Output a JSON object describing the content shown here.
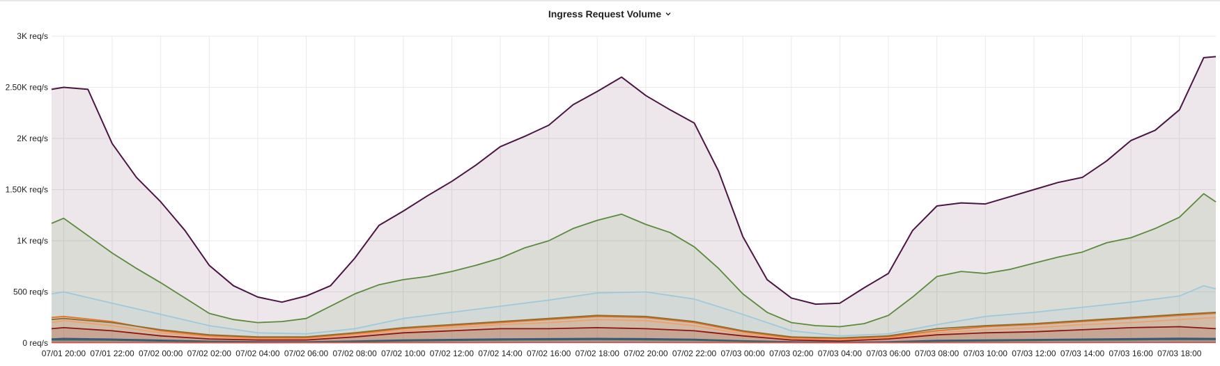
{
  "panel": {
    "title": "Ingress Request Volume"
  },
  "chart_data": {
    "type": "area",
    "title": "Ingress Request Volume",
    "xlabel": "",
    "ylabel": "",
    "ylim": [
      0,
      3000
    ],
    "y_ticks": [
      {
        "value": 0,
        "label": "0 req/s"
      },
      {
        "value": 500,
        "label": "500 req/s"
      },
      {
        "value": 1000,
        "label": "1K req/s"
      },
      {
        "value": 1500,
        "label": "1.50K req/s"
      },
      {
        "value": 2000,
        "label": "2K req/s"
      },
      {
        "value": 2500,
        "label": "2.50K req/s"
      },
      {
        "value": 3000,
        "label": "3K req/s"
      }
    ],
    "x_ticks": [
      "07/01 20:00",
      "07/01 22:00",
      "07/02 00:00",
      "07/02 02:00",
      "07/02 04:00",
      "07/02 06:00",
      "07/02 08:00",
      "07/02 10:00",
      "07/02 12:00",
      "07/02 14:00",
      "07/02 16:00",
      "07/02 18:00",
      "07/02 20:00",
      "07/02 22:00",
      "07/03 00:00",
      "07/03 02:00",
      "07/03 04:00",
      "07/03 06:00",
      "07/03 08:00",
      "07/03 10:00",
      "07/03 12:00",
      "07/03 14:00",
      "07/03 16:00",
      "07/03 18:00"
    ],
    "x_start": "07/01 19:30",
    "x_end": "07/03 19:30",
    "grid": true,
    "legend": "none",
    "series": [
      {
        "color": "#4a1542",
        "x": [
          "07/01 19:30",
          "07/01 20:00",
          "07/01 21:00",
          "07/01 22:00",
          "07/01 23:00",
          "07/02 00:00",
          "07/02 01:00",
          "07/02 02:00",
          "07/02 03:00",
          "07/02 04:00",
          "07/02 05:00",
          "07/02 06:00",
          "07/02 07:00",
          "07/02 08:00",
          "07/02 09:00",
          "07/02 10:00",
          "07/02 11:00",
          "07/02 12:00",
          "07/02 13:00",
          "07/02 14:00",
          "07/02 15:00",
          "07/02 16:00",
          "07/02 17:00",
          "07/02 18:00",
          "07/02 19:00",
          "07/02 20:00",
          "07/02 21:00",
          "07/02 22:00",
          "07/02 23:00",
          "07/03 00:00",
          "07/03 01:00",
          "07/03 02:00",
          "07/03 03:00",
          "07/03 04:00",
          "07/03 05:00",
          "07/03 06:00",
          "07/03 07:00",
          "07/03 08:00",
          "07/03 09:00",
          "07/03 10:00",
          "07/03 11:00",
          "07/03 12:00",
          "07/03 13:00",
          "07/03 14:00",
          "07/03 15:00",
          "07/03 16:00",
          "07/03 17:00",
          "07/03 18:00",
          "07/03 19:00",
          "07/03 19:30"
        ],
        "y": [
          2480,
          2500,
          2480,
          1950,
          1620,
          1380,
          1100,
          760,
          560,
          450,
          400,
          460,
          560,
          830,
          1150,
          1290,
          1440,
          1580,
          1740,
          1920,
          2020,
          2130,
          2330,
          2460,
          2600,
          2420,
          2280,
          2150,
          1680,
          1040,
          620,
          440,
          380,
          390,
          540,
          680,
          1100,
          1340,
          1370,
          1360,
          1430,
          1500,
          1570,
          1620,
          1780,
          1980,
          2080,
          2280,
          2790,
          2800
        ]
      },
      {
        "color": "#5a8a3c",
        "x": [
          "07/01 19:30",
          "07/01 20:00",
          "07/01 21:00",
          "07/01 22:00",
          "07/01 23:00",
          "07/02 00:00",
          "07/02 01:00",
          "07/02 02:00",
          "07/02 03:00",
          "07/02 04:00",
          "07/02 05:00",
          "07/02 06:00",
          "07/02 07:00",
          "07/02 08:00",
          "07/02 09:00",
          "07/02 10:00",
          "07/02 11:00",
          "07/02 12:00",
          "07/02 13:00",
          "07/02 14:00",
          "07/02 15:00",
          "07/02 16:00",
          "07/02 17:00",
          "07/02 18:00",
          "07/02 19:00",
          "07/02 20:00",
          "07/02 21:00",
          "07/02 22:00",
          "07/02 23:00",
          "07/03 00:00",
          "07/03 01:00",
          "07/03 02:00",
          "07/03 03:00",
          "07/03 04:00",
          "07/03 05:00",
          "07/03 06:00",
          "07/03 07:00",
          "07/03 08:00",
          "07/03 09:00",
          "07/03 10:00",
          "07/03 11:00",
          "07/03 12:00",
          "07/03 13:00",
          "07/03 14:00",
          "07/03 15:00",
          "07/03 16:00",
          "07/03 17:00",
          "07/03 18:00",
          "07/03 19:00",
          "07/03 19:30"
        ],
        "y": [
          1170,
          1220,
          1050,
          880,
          730,
          590,
          440,
          290,
          230,
          200,
          210,
          240,
          360,
          480,
          570,
          620,
          650,
          700,
          760,
          830,
          930,
          1000,
          1120,
          1200,
          1260,
          1160,
          1080,
          940,
          730,
          480,
          300,
          200,
          170,
          160,
          190,
          270,
          450,
          650,
          700,
          680,
          720,
          780,
          840,
          890,
          980,
          1030,
          1120,
          1230,
          1460,
          1380
        ]
      },
      {
        "color": "#9ec9dd",
        "x": [
          "07/01 19:30",
          "07/01 20:00",
          "07/01 22:00",
          "07/02 00:00",
          "07/02 02:00",
          "07/02 04:00",
          "07/02 06:00",
          "07/02 08:00",
          "07/02 10:00",
          "07/02 12:00",
          "07/02 14:00",
          "07/02 16:00",
          "07/02 18:00",
          "07/02 20:00",
          "07/02 22:00",
          "07/03 00:00",
          "07/03 02:00",
          "07/03 04:00",
          "07/03 06:00",
          "07/03 08:00",
          "07/03 10:00",
          "07/03 12:00",
          "07/03 14:00",
          "07/03 16:00",
          "07/03 18:00",
          "07/03 19:00",
          "07/03 19:30"
        ],
        "y": [
          480,
          500,
          390,
          280,
          170,
          100,
          90,
          140,
          240,
          300,
          360,
          420,
          490,
          500,
          430,
          280,
          120,
          70,
          90,
          180,
          260,
          300,
          350,
          400,
          460,
          560,
          530
        ]
      },
      {
        "color": "#e8712a",
        "x": [
          "07/01 19:30",
          "07/01 20:00",
          "07/01 22:00",
          "07/02 00:00",
          "07/02 02:00",
          "07/02 04:00",
          "07/02 06:00",
          "07/02 08:00",
          "07/02 10:00",
          "07/02 12:00",
          "07/02 14:00",
          "07/02 16:00",
          "07/02 18:00",
          "07/02 20:00",
          "07/02 22:00",
          "07/03 00:00",
          "07/03 02:00",
          "07/03 04:00",
          "07/03 06:00",
          "07/03 08:00",
          "07/03 10:00",
          "07/03 12:00",
          "07/03 14:00",
          "07/03 16:00",
          "07/03 18:00",
          "07/03 19:30"
        ],
        "y": [
          250,
          260,
          210,
          120,
          70,
          50,
          50,
          90,
          140,
          170,
          200,
          230,
          260,
          250,
          200,
          110,
          50,
          40,
          60,
          120,
          160,
          180,
          210,
          240,
          270,
          290
        ]
      },
      {
        "color": "#8c6d2c",
        "x": [
          "07/01 19:30",
          "07/01 20:00",
          "07/01 22:00",
          "07/02 00:00",
          "07/02 02:00",
          "07/02 04:00",
          "07/02 06:00",
          "07/02 08:00",
          "07/02 10:00",
          "07/02 12:00",
          "07/02 14:00",
          "07/02 16:00",
          "07/02 18:00",
          "07/02 20:00",
          "07/02 22:00",
          "07/03 00:00",
          "07/03 02:00",
          "07/03 04:00",
          "07/03 06:00",
          "07/03 08:00",
          "07/03 10:00",
          "07/03 12:00",
          "07/03 14:00",
          "07/03 16:00",
          "07/03 18:00",
          "07/03 19:30"
        ],
        "y": [
          230,
          240,
          200,
          130,
          80,
          60,
          60,
          100,
          150,
          180,
          210,
          240,
          270,
          260,
          210,
          120,
          60,
          50,
          70,
          140,
          170,
          190,
          220,
          250,
          280,
          300
        ]
      },
      {
        "color": "#f0a070",
        "x": [
          "07/01 19:30",
          "07/01 20:00",
          "07/01 22:00",
          "07/02 00:00",
          "07/02 02:00",
          "07/02 04:00",
          "07/02 06:00",
          "07/02 08:00",
          "07/02 10:00",
          "07/02 12:00",
          "07/02 14:00",
          "07/02 16:00",
          "07/02 18:00",
          "07/02 20:00",
          "07/02 22:00",
          "07/03 00:00",
          "07/03 02:00",
          "07/03 04:00",
          "07/03 06:00",
          "07/03 08:00",
          "07/03 10:00",
          "07/03 12:00",
          "07/03 14:00",
          "07/03 16:00",
          "07/03 18:00",
          "07/03 19:30"
        ],
        "y": [
          200,
          220,
          170,
          100,
          60,
          40,
          40,
          80,
          120,
          150,
          180,
          200,
          230,
          220,
          170,
          90,
          40,
          30,
          50,
          100,
          130,
          150,
          180,
          200,
          230,
          250
        ]
      },
      {
        "color": "#8e1414",
        "x": [
          "07/01 19:30",
          "07/01 20:00",
          "07/01 22:00",
          "07/02 00:00",
          "07/02 02:00",
          "07/02 04:00",
          "07/02 06:00",
          "07/02 08:00",
          "07/02 10:00",
          "07/02 12:00",
          "07/02 14:00",
          "07/02 16:00",
          "07/02 18:00",
          "07/02 20:00",
          "07/02 22:00",
          "07/03 00:00",
          "07/03 02:00",
          "07/03 04:00",
          "07/03 06:00",
          "07/03 08:00",
          "07/03 10:00",
          "07/03 12:00",
          "07/03 14:00",
          "07/03 16:00",
          "07/03 18:00",
          "07/03 19:30"
        ],
        "y": [
          140,
          150,
          120,
          70,
          40,
          30,
          30,
          60,
          100,
          120,
          140,
          140,
          150,
          140,
          120,
          70,
          30,
          20,
          40,
          80,
          100,
          110,
          130,
          150,
          160,
          140
        ]
      },
      {
        "color": "#3d4f8a",
        "x": [
          "07/01 19:30",
          "07/01 20:00",
          "07/01 22:00",
          "07/02 00:00",
          "07/02 02:00",
          "07/02 04:00",
          "07/02 06:00",
          "07/02 08:00",
          "07/02 10:00",
          "07/02 12:00",
          "07/02 14:00",
          "07/02 16:00",
          "07/02 18:00",
          "07/02 20:00",
          "07/02 22:00",
          "07/03 00:00",
          "07/03 02:00",
          "07/03 04:00",
          "07/03 06:00",
          "07/03 08:00",
          "07/03 10:00",
          "07/03 12:00",
          "07/03 14:00",
          "07/03 16:00",
          "07/03 18:00",
          "07/03 19:30"
        ],
        "y": [
          40,
          45,
          38,
          28,
          18,
          12,
          12,
          20,
          30,
          35,
          40,
          42,
          45,
          42,
          36,
          22,
          12,
          8,
          12,
          25,
          30,
          34,
          38,
          42,
          46,
          44
        ]
      },
      {
        "color": "#2e6b5a",
        "x": [
          "07/01 19:30",
          "07/01 20:00",
          "07/01 22:00",
          "07/02 00:00",
          "07/02 02:00",
          "07/02 04:00",
          "07/02 06:00",
          "07/02 08:00",
          "07/02 10:00",
          "07/02 12:00",
          "07/02 14:00",
          "07/02 16:00",
          "07/02 18:00",
          "07/02 20:00",
          "07/02 22:00",
          "07/03 00:00",
          "07/03 02:00",
          "07/03 04:00",
          "07/03 06:00",
          "07/03 08:00",
          "07/03 10:00",
          "07/03 12:00",
          "07/03 14:00",
          "07/03 16:00",
          "07/03 18:00",
          "07/03 19:30"
        ],
        "y": [
          30,
          32,
          28,
          20,
          14,
          10,
          10,
          15,
          22,
          26,
          30,
          32,
          34,
          32,
          28,
          18,
          10,
          7,
          10,
          18,
          22,
          26,
          29,
          32,
          35,
          34
        ]
      },
      {
        "color": "#e05050",
        "x": [
          "07/01 19:30",
          "07/01 20:00",
          "07/02 00:00",
          "07/02 04:00",
          "07/02 08:00",
          "07/02 12:00",
          "07/02 16:00",
          "07/02 20:00",
          "07/03 00:00",
          "07/03 04:00",
          "07/03 08:00",
          "07/03 12:00",
          "07/03 16:00",
          "07/03 19:30"
        ],
        "y": [
          5,
          5,
          4,
          3,
          4,
          5,
          6,
          6,
          4,
          3,
          4,
          5,
          6,
          6
        ]
      }
    ]
  }
}
